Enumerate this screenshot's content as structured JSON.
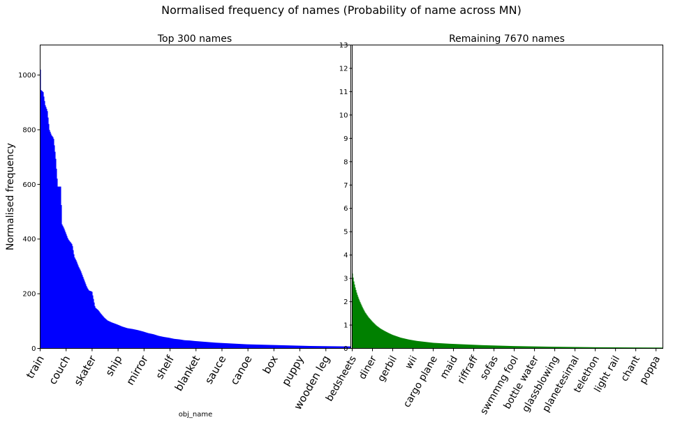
{
  "figure": {
    "title": "Normalised frequency of names (Probability of name across MN)"
  },
  "chart_data": [
    {
      "type": "bar",
      "title": "Top 300 names",
      "xlabel": "obj_name",
      "ylabel": "Normalised frequency",
      "color": "#0000ff",
      "n_bars": 300,
      "ylim": [
        0,
        1110
      ],
      "yticks": [
        0,
        200,
        400,
        600,
        800,
        1000
      ],
      "categories_shown": [
        "train",
        "couch",
        "skater",
        "ship",
        "mirror",
        "shelf",
        "blanket",
        "sauce",
        "canoe",
        "box",
        "puppy",
        "wooden leg"
      ],
      "category_label_rank": [
        1,
        26,
        51,
        76,
        101,
        126,
        151,
        176,
        201,
        226,
        251,
        276
      ],
      "values_by_rank": [
        [
          1,
          1058
        ],
        [
          2,
          945
        ],
        [
          4,
          938
        ],
        [
          6,
          890
        ],
        [
          8,
          870
        ],
        [
          10,
          800
        ],
        [
          12,
          780
        ],
        [
          14,
          770
        ],
        [
          16,
          700
        ],
        [
          18,
          592
        ],
        [
          21,
          592
        ],
        [
          22,
          455
        ],
        [
          24,
          440
        ],
        [
          26,
          420
        ],
        [
          28,
          400
        ],
        [
          30,
          390
        ],
        [
          32,
          380
        ],
        [
          34,
          335
        ],
        [
          36,
          320
        ],
        [
          38,
          300
        ],
        [
          40,
          285
        ],
        [
          42,
          265
        ],
        [
          44,
          245
        ],
        [
          46,
          225
        ],
        [
          48,
          212
        ],
        [
          51,
          208
        ],
        [
          54,
          150
        ],
        [
          57,
          140
        ],
        [
          60,
          125
        ],
        [
          63,
          112
        ],
        [
          66,
          102
        ],
        [
          70,
          95
        ],
        [
          75,
          88
        ],
        [
          80,
          80
        ],
        [
          85,
          74
        ],
        [
          90,
          71
        ],
        [
          95,
          67
        ],
        [
          100,
          62
        ],
        [
          105,
          56
        ],
        [
          110,
          52
        ],
        [
          115,
          46
        ],
        [
          120,
          42
        ],
        [
          125,
          39
        ],
        [
          130,
          35
        ],
        [
          135,
          33
        ],
        [
          140,
          30
        ],
        [
          145,
          29
        ],
        [
          150,
          27
        ],
        [
          160,
          24
        ],
        [
          170,
          21
        ],
        [
          180,
          19
        ],
        [
          190,
          17
        ],
        [
          200,
          15
        ],
        [
          210,
          14
        ],
        [
          220,
          13
        ],
        [
          230,
          12
        ],
        [
          240,
          11
        ],
        [
          250,
          10
        ],
        [
          260,
          9
        ],
        [
          270,
          8.5
        ],
        [
          280,
          8
        ],
        [
          290,
          7.6
        ],
        [
          300,
          7.2
        ]
      ]
    },
    {
      "type": "bar",
      "title": "Remaining 7670 names",
      "xlabel": "",
      "ylabel": "",
      "color": "#008000",
      "n_bars": 7670,
      "ylim": [
        0,
        13
      ],
      "yticks": [
        0,
        1,
        2,
        3,
        4,
        5,
        6,
        7,
        8,
        9,
        10,
        11,
        12,
        13
      ],
      "categories_shown": [
        "bedsheets",
        "diner",
        "gerbil",
        "wii",
        "cargo plane",
        "maid",
        "riffraff",
        "sofas",
        "swmmng fool",
        "bottle water",
        "glassblowing",
        "planetesimal",
        "telethon",
        "light rail",
        "chant",
        "poppa"
      ],
      "category_label_rank": [
        1,
        501,
        1001,
        1501,
        2001,
        2501,
        3001,
        3501,
        4001,
        4501,
        5001,
        5501,
        6001,
        6501,
        7001,
        7501
      ],
      "values_by_rank": [
        [
          1,
          3.3
        ],
        [
          40,
          2.9
        ],
        [
          80,
          2.6
        ],
        [
          120,
          2.35
        ],
        [
          160,
          2.15
        ],
        [
          200,
          1.98
        ],
        [
          260,
          1.75
        ],
        [
          320,
          1.55
        ],
        [
          400,
          1.35
        ],
        [
          500,
          1.15
        ],
        [
          600,
          0.98
        ],
        [
          700,
          0.85
        ],
        [
          800,
          0.75
        ],
        [
          900,
          0.66
        ],
        [
          1000,
          0.58
        ],
        [
          1200,
          0.46
        ],
        [
          1400,
          0.38
        ],
        [
          1600,
          0.32
        ],
        [
          1800,
          0.28
        ],
        [
          2000,
          0.24
        ],
        [
          2400,
          0.2
        ],
        [
          2800,
          0.17
        ],
        [
          3200,
          0.14
        ],
        [
          3600,
          0.12
        ],
        [
          4000,
          0.1
        ],
        [
          4500,
          0.085
        ],
        [
          5000,
          0.07
        ],
        [
          5500,
          0.06
        ],
        [
          6000,
          0.05
        ],
        [
          6500,
          0.045
        ],
        [
          7000,
          0.04
        ],
        [
          7670,
          0.035
        ]
      ]
    }
  ]
}
